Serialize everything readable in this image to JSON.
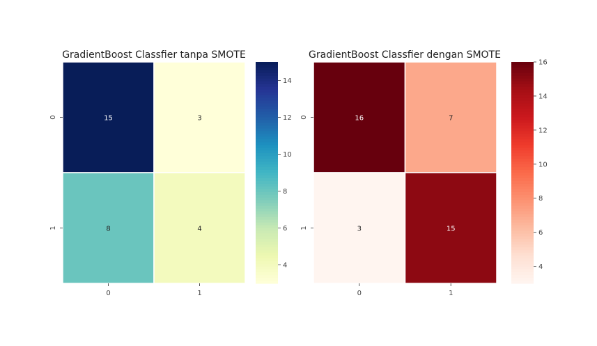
{
  "chart_data": [
    {
      "type": "heatmap",
      "title": "GradientBoost Classfier tanpa SMOTE",
      "x_categories": [
        "0",
        "1"
      ],
      "y_categories": [
        "0",
        "1"
      ],
      "values": [
        [
          15,
          3
        ],
        [
          8,
          4
        ]
      ],
      "colormap": "YlGnBu",
      "colorbar": {
        "range": [
          3,
          15
        ],
        "ticks": [
          4,
          6,
          8,
          10,
          12,
          14
        ]
      }
    },
    {
      "type": "heatmap",
      "title": "GradientBoost Classfier dengan SMOTE",
      "x_categories": [
        "0",
        "1"
      ],
      "y_categories": [
        "0",
        "1"
      ],
      "values": [
        [
          16,
          7
        ],
        [
          3,
          15
        ]
      ],
      "colormap": "Reds",
      "colorbar": {
        "range": [
          3,
          16
        ],
        "ticks": [
          4,
          6,
          8,
          10,
          12,
          14,
          16
        ]
      }
    }
  ]
}
